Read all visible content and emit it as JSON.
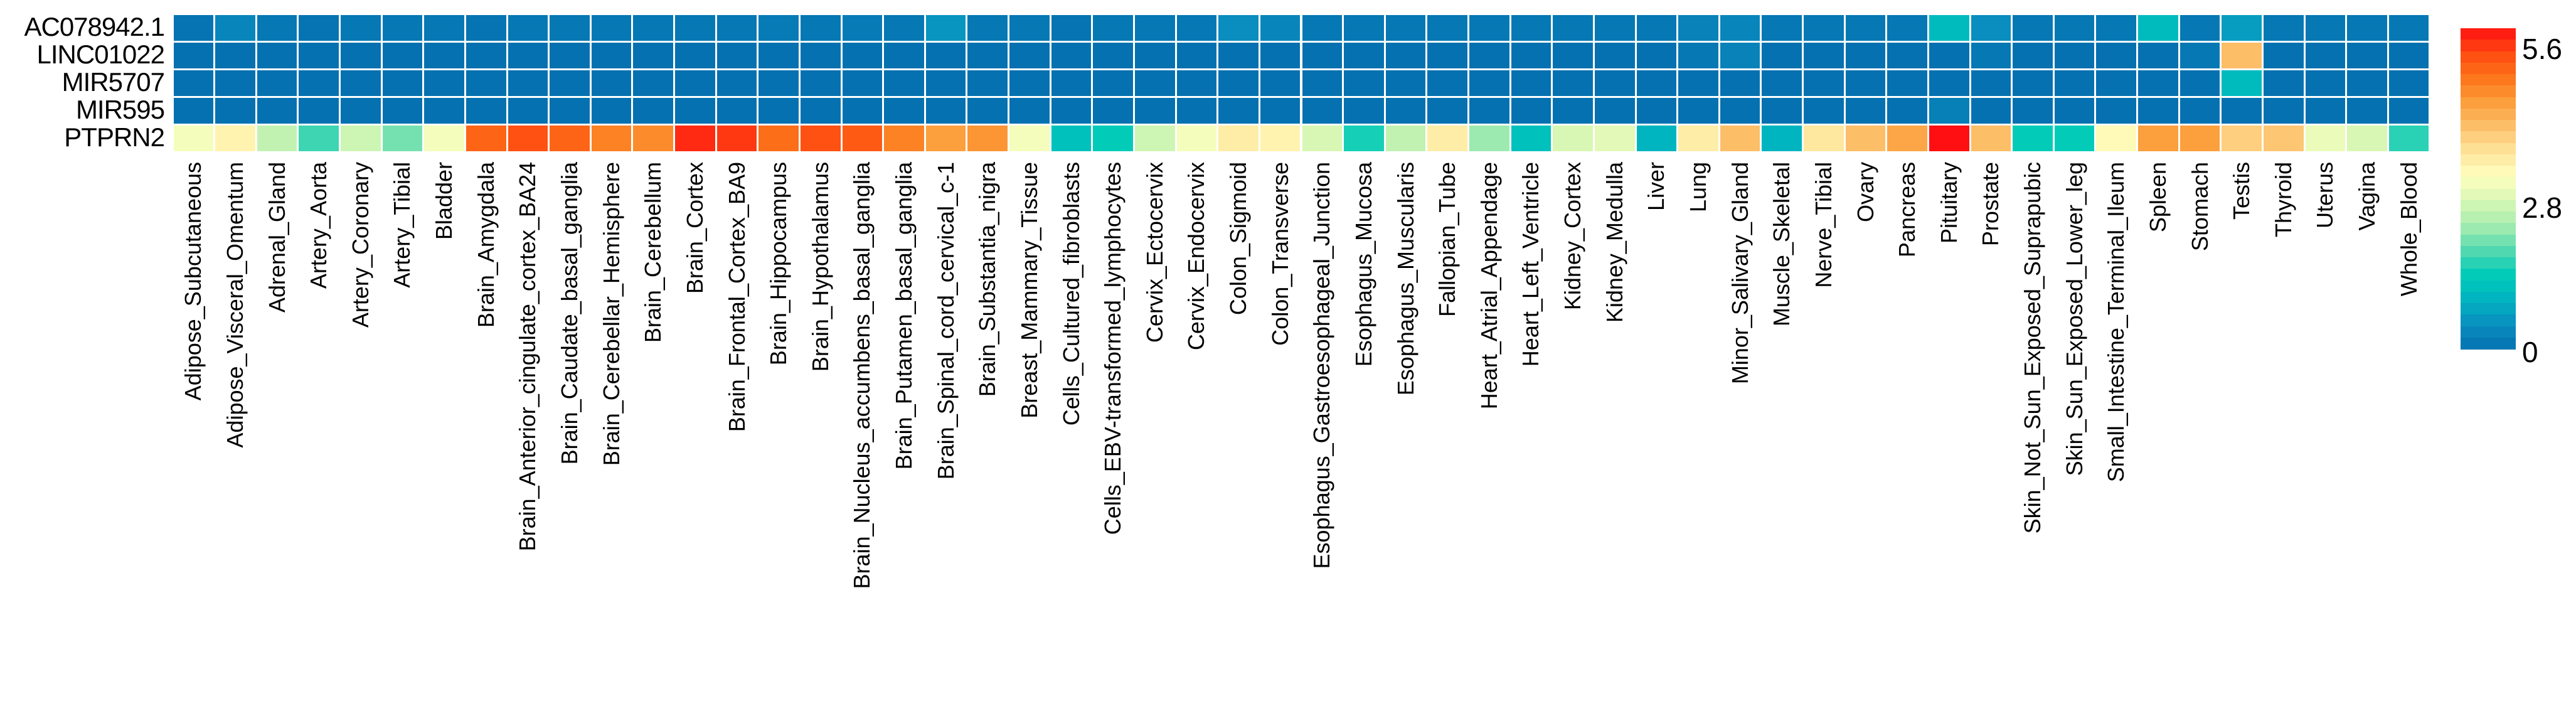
{
  "chart_data": {
    "type": "heatmap",
    "title": "",
    "xlabel": "",
    "ylabel": "",
    "rows": [
      "AC078942.1",
      "LINC01022",
      "MIR5707",
      "MIR595",
      "PTPRN2"
    ],
    "columns": [
      "Adipose_Subcutaneous",
      "Adipose_Visceral_Omentum",
      "Adrenal_Gland",
      "Artery_Aorta",
      "Artery_Coronary",
      "Artery_Tibial",
      "Bladder",
      "Brain_Amygdala",
      "Brain_Anterior_cingulate_cortex_BA24",
      "Brain_Caudate_basal_ganglia",
      "Brain_Cerebellar_Hemisphere",
      "Brain_Cerebellum",
      "Brain_Cortex",
      "Brain_Frontal_Cortex_BA9",
      "Brain_Hippocampus",
      "Brain_Hypothalamus",
      "Brain_Nucleus_accumbens_basal_ganglia",
      "Brain_Putamen_basal_ganglia",
      "Brain_Spinal_cord_cervical_c-1",
      "Brain_Substantia_nigra",
      "Breast_Mammary_Tissue",
      "Cells_Cultured_fibroblasts",
      "Cells_EBV-transformed_lymphocytes",
      "Cervix_Ectocervix",
      "Cervix_Endocervix",
      "Colon_Sigmoid",
      "Colon_Transverse",
      "Esophagus_Gastroesophageal_Junction",
      "Esophagus_Mucosa",
      "Esophagus_Muscularis",
      "Fallopian_Tube",
      "Heart_Atrial_Appendage",
      "Heart_Left_Ventricle",
      "Kidney_Cortex",
      "Kidney_Medulla",
      "Liver",
      "Lung",
      "Minor_Salivary_Gland",
      "Muscle_Skeletal",
      "Nerve_Tibial",
      "Ovary",
      "Pancreas",
      "Pituitary",
      "Prostate",
      "Skin_Not_Sun_Exposed_Suprapubic",
      "Skin_Sun_Exposed_Lower_leg",
      "Small_Intestine_Terminal_Ileum",
      "Spleen",
      "Stomach",
      "Testis",
      "Thyroid",
      "Uterus",
      "Vagina",
      "Whole_Blood"
    ],
    "values": [
      [
        0.05,
        0.3,
        0.1,
        0.05,
        0.1,
        0.1,
        0.1,
        0.05,
        0.1,
        0.1,
        0.1,
        0.1,
        0.1,
        0.1,
        0.15,
        0.1,
        0.15,
        0.1,
        0.5,
        0.1,
        0.1,
        0.05,
        0.1,
        0.1,
        0.1,
        0.4,
        0.3,
        0.1,
        0.1,
        0.1,
        0.1,
        0.1,
        0.1,
        0.1,
        0.1,
        0.1,
        0.25,
        0.3,
        0.1,
        0.1,
        0.1,
        0.1,
        1.0,
        0.4,
        0.1,
        0.1,
        0.1,
        1.0,
        0.1,
        0.6,
        0.1,
        0.1,
        0.1,
        0.1
      ],
      [
        0.0,
        0.0,
        0.0,
        0.0,
        0.0,
        0.0,
        0.0,
        0.0,
        0.0,
        0.0,
        0.0,
        0.0,
        0.0,
        0.0,
        0.0,
        0.0,
        0.0,
        0.0,
        0.0,
        0.0,
        0.0,
        0.0,
        0.0,
        0.0,
        0.0,
        0.0,
        0.0,
        0.0,
        0.0,
        0.0,
        0.0,
        0.0,
        0.0,
        0.0,
        0.0,
        0.0,
        0.1,
        0.25,
        0.0,
        0.0,
        0.0,
        0.0,
        0.0,
        0.1,
        0.0,
        0.0,
        0.0,
        0.0,
        0.1,
        3.9,
        0.0,
        0.0,
        0.0,
        0.0
      ],
      [
        0.0,
        0.0,
        0.0,
        0.0,
        0.0,
        0.0,
        0.0,
        0.0,
        0.0,
        0.0,
        0.0,
        0.0,
        0.0,
        0.0,
        0.0,
        0.0,
        0.0,
        0.0,
        0.0,
        0.0,
        0.0,
        0.0,
        0.0,
        0.0,
        0.0,
        0.0,
        0.0,
        0.0,
        0.0,
        0.0,
        0.0,
        0.0,
        0.0,
        0.0,
        0.0,
        0.0,
        0.0,
        0.0,
        0.0,
        0.0,
        0.0,
        0.0,
        0.0,
        0.0,
        0.0,
        0.0,
        0.0,
        0.0,
        0.0,
        1.0,
        0.0,
        0.0,
        0.0,
        0.0
      ],
      [
        0.0,
        0.0,
        0.0,
        0.0,
        0.0,
        0.0,
        0.0,
        0.0,
        0.0,
        0.0,
        0.0,
        0.0,
        0.0,
        0.0,
        0.0,
        0.0,
        0.0,
        0.0,
        0.0,
        0.0,
        0.0,
        0.0,
        0.0,
        0.0,
        0.0,
        0.0,
        0.0,
        0.0,
        0.0,
        0.0,
        0.0,
        0.0,
        0.0,
        0.0,
        0.0,
        0.0,
        0.0,
        0.0,
        0.0,
        0.0,
        0.0,
        0.0,
        0.2,
        0.0,
        0.0,
        0.0,
        0.0,
        0.0,
        0.0,
        0.0,
        0.0,
        0.0,
        0.0,
        0.0
      ],
      [
        2.9,
        3.2,
        2.4,
        1.6,
        2.5,
        1.9,
        2.9,
        4.9,
        5.1,
        4.9,
        4.6,
        4.5,
        5.4,
        5.3,
        4.8,
        5.1,
        5.0,
        4.6,
        4.3,
        4.4,
        2.9,
        1.1,
        1.3,
        2.5,
        2.9,
        3.3,
        3.2,
        2.6,
        1.4,
        2.4,
        3.3,
        2.1,
        1.1,
        2.6,
        2.7,
        0.9,
        3.3,
        3.9,
        0.9,
        3.4,
        3.9,
        4.2,
        5.6,
        3.9,
        1.3,
        1.3,
        3.1,
        4.3,
        4.3,
        3.7,
        3.8,
        2.8,
        2.6,
        1.5
      ]
    ],
    "colorscale": {
      "min": 0,
      "max": 5.6,
      "ticks": [
        0,
        2.8,
        5.6
      ],
      "tick_labels": [
        "0",
        "2.8",
        "5.6"
      ],
      "stops": [
        "#0571b0",
        "#0a8fc0",
        "#00b3c0",
        "#00ccb8",
        "#55d9b0",
        "#a6ecb0",
        "#d7f7b4",
        "#ffffbf",
        "#fee49a",
        "#fdc06a",
        "#fc9e3c",
        "#fd7419",
        "#ff4a10",
        "#ff0f12"
      ]
    },
    "legend_position": "right",
    "grid": false
  },
  "row_labels": [
    "AC078942.1",
    "LINC01022",
    "MIR5707",
    "MIR595",
    "PTPRN2"
  ],
  "legend": {
    "max_label": "5.6",
    "mid_label": "2.8",
    "min_label": "0"
  }
}
